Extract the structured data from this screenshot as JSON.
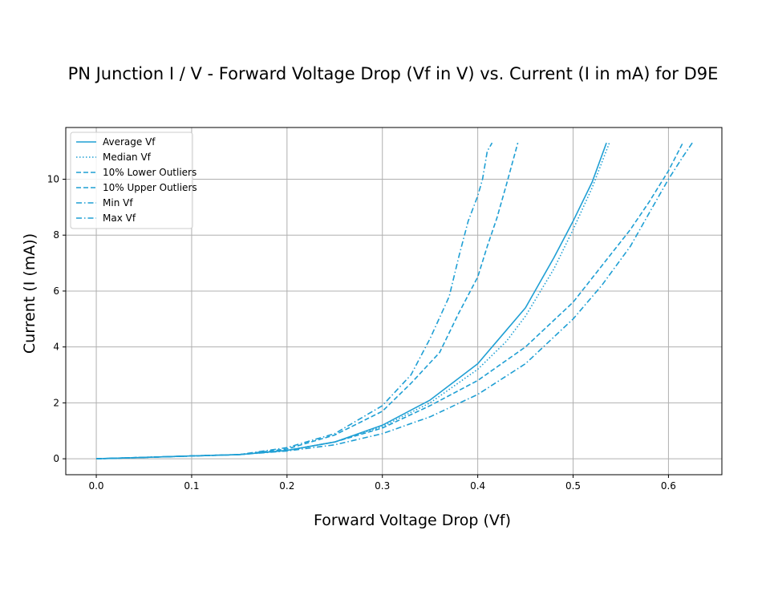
{
  "chart_data": {
    "type": "line",
    "title": "PN Junction I / V - Forward Voltage Drop (Vf in V) vs. Current (I in mA) for D9E",
    "xlabel": "Forward Voltage Drop (Vf)",
    "ylabel": "Current (I (mA))",
    "xlim": [
      -0.032,
      0.656
    ],
    "ylim": [
      -0.57,
      11.85
    ],
    "xticks": [
      0.0,
      0.1,
      0.2,
      0.3,
      0.4,
      0.5,
      0.6
    ],
    "xtick_labels": [
      "0.0",
      "0.1",
      "0.2",
      "0.3",
      "0.4",
      "0.5",
      "0.6"
    ],
    "yticks": [
      0,
      2,
      4,
      6,
      8,
      10
    ],
    "ytick_labels": [
      "0",
      "2",
      "4",
      "6",
      "8",
      "10"
    ],
    "grid": true,
    "legend_position": "top-left",
    "color": "#1f9fd4",
    "series": [
      {
        "name": "Average Vf",
        "style": "solid",
        "x": [
          0.0,
          0.05,
          0.1,
          0.15,
          0.2,
          0.25,
          0.3,
          0.35,
          0.4,
          0.43,
          0.45,
          0.48,
          0.5,
          0.52,
          0.535
        ],
        "y": [
          0.0,
          0.05,
          0.1,
          0.15,
          0.3,
          0.6,
          1.2,
          2.1,
          3.4,
          4.6,
          5.4,
          7.2,
          8.5,
          9.9,
          11.3
        ]
      },
      {
        "name": "Median Vf",
        "style": "dotted",
        "x": [
          0.0,
          0.05,
          0.1,
          0.15,
          0.2,
          0.25,
          0.3,
          0.35,
          0.4,
          0.43,
          0.45,
          0.48,
          0.5,
          0.52,
          0.538
        ],
        "y": [
          0.0,
          0.05,
          0.1,
          0.15,
          0.3,
          0.6,
          1.15,
          2.0,
          3.2,
          4.2,
          5.1,
          6.8,
          8.2,
          9.7,
          11.3
        ]
      },
      {
        "name": "10% Lower Outliers",
        "style": "dashed",
        "x": [
          0.0,
          0.05,
          0.1,
          0.15,
          0.2,
          0.25,
          0.3,
          0.33,
          0.36,
          0.38,
          0.4,
          0.41,
          0.42,
          0.43,
          0.442
        ],
        "y": [
          0.0,
          0.05,
          0.1,
          0.15,
          0.35,
          0.85,
          1.7,
          2.7,
          3.8,
          5.2,
          6.5,
          7.6,
          8.6,
          9.8,
          11.3
        ]
      },
      {
        "name": "10% Upper Outliers",
        "style": "dashed",
        "x": [
          0.0,
          0.05,
          0.1,
          0.15,
          0.2,
          0.25,
          0.3,
          0.35,
          0.4,
          0.45,
          0.5,
          0.53,
          0.56,
          0.58,
          0.6,
          0.615
        ],
        "y": [
          0.0,
          0.05,
          0.1,
          0.15,
          0.3,
          0.6,
          1.1,
          1.9,
          2.8,
          4.0,
          5.6,
          6.9,
          8.2,
          9.2,
          10.3,
          11.3
        ]
      },
      {
        "name": "Min Vf",
        "style": "dashdot",
        "x": [
          0.0,
          0.05,
          0.1,
          0.15,
          0.2,
          0.25,
          0.3,
          0.33,
          0.35,
          0.37,
          0.38,
          0.39,
          0.4,
          0.405,
          0.41,
          0.415
        ],
        "y": [
          0.0,
          0.05,
          0.1,
          0.15,
          0.4,
          0.9,
          1.9,
          3.0,
          4.3,
          5.8,
          7.2,
          8.5,
          9.4,
          10.0,
          11.0,
          11.3
        ]
      },
      {
        "name": "Max Vf",
        "style": "dashdot",
        "x": [
          0.0,
          0.05,
          0.1,
          0.15,
          0.2,
          0.25,
          0.3,
          0.35,
          0.4,
          0.45,
          0.5,
          0.53,
          0.56,
          0.58,
          0.6,
          0.615,
          0.625
        ],
        "y": [
          0.0,
          0.05,
          0.1,
          0.15,
          0.28,
          0.5,
          0.9,
          1.5,
          2.3,
          3.4,
          5.0,
          6.2,
          7.6,
          8.8,
          10.0,
          10.8,
          11.3
        ]
      }
    ]
  }
}
